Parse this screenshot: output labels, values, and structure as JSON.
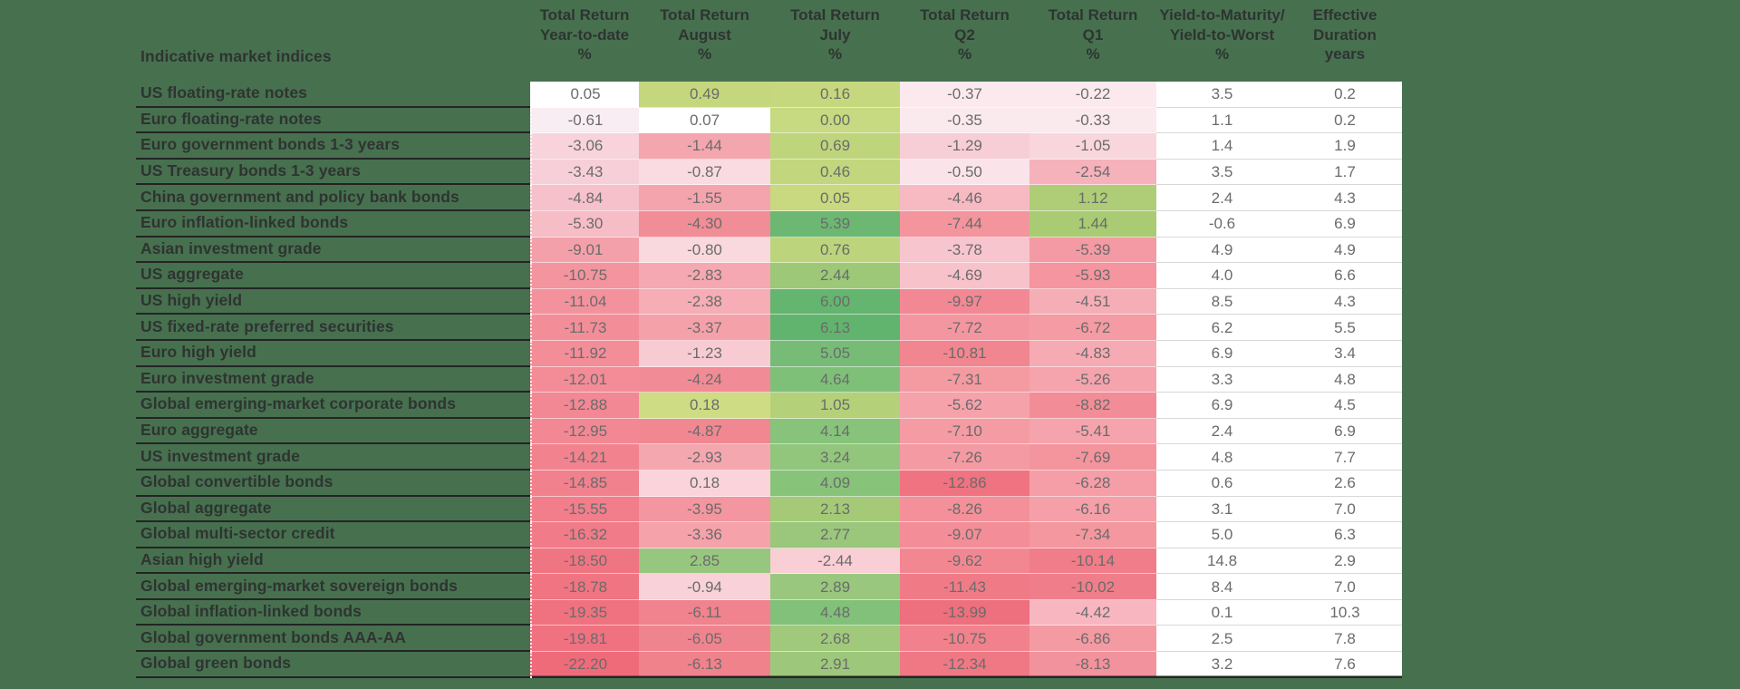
{
  "palette": {
    "background": "#47704f",
    "header_text": "#2e3431",
    "label_text": "#2e3431",
    "value_text": "#6b6b6b",
    "row_underline": "#242424",
    "neutral_cell": "#ffffff"
  },
  "chart_data": {
    "type": "heatmap",
    "row_header": "Indicative market indices",
    "legend_position": "none",
    "columns": [
      {
        "name": "Total Return Year-to-date %",
        "lines": [
          "Total Return",
          "Year-to-date",
          "%"
        ]
      },
      {
        "name": "Total Return August %",
        "lines": [
          "Total Return",
          "August",
          "%"
        ]
      },
      {
        "name": "Total Return July %",
        "lines": [
          "Total Return",
          "July",
          "%"
        ]
      },
      {
        "name": "Total Return Q2 %",
        "lines": [
          "Total Return",
          "Q2",
          "%"
        ]
      },
      {
        "name": "Total Return Q1 %",
        "lines": [
          "Total Return",
          "Q1",
          "%"
        ]
      },
      {
        "name": "Yield-to-Maturity/Yield-to-Worst %",
        "lines": [
          "Yield-to-Maturity/",
          "Yield-to-Worst",
          "%"
        ]
      },
      {
        "name": "Effective Duration years",
        "lines": [
          "Effective",
          "Duration",
          "years"
        ]
      }
    ],
    "rows": [
      {
        "label": "US floating-rate notes",
        "values": [
          "0.05",
          "0.49",
          "0.16",
          "-0.37",
          "-0.22",
          "3.5",
          "0.2"
        ],
        "colors": [
          "#ffffff",
          "#c4d77d",
          "#c6d87e",
          "#fbe9ed",
          "#fbe9ed"
        ]
      },
      {
        "label": "Euro floating-rate notes",
        "values": [
          "-0.61",
          "0.07",
          "0.00",
          "-0.35",
          "-0.33",
          "1.1",
          "0.2"
        ],
        "colors": [
          "#f8edf2",
          "#ffffff",
          "#c7d981",
          "#fae9ed",
          "#fae9ed"
        ]
      },
      {
        "label": "Euro government bonds 1-3 years",
        "values": [
          "-3.06",
          "-1.44",
          "0.69",
          "-1.29",
          "-1.05",
          "1.4",
          "1.9"
        ],
        "colors": [
          "#f8d3db",
          "#f4a6ae",
          "#bed57c",
          "#f8ced6",
          "#f9d6dc"
        ]
      },
      {
        "label": "US Treasury bonds 1-3 years",
        "values": [
          "-3.43",
          "-0.87",
          "0.46",
          "-0.50",
          "-2.54",
          "3.5",
          "1.7"
        ],
        "colors": [
          "#f7cfd8",
          "#f9dbe1",
          "#c2d67e",
          "#fae4e9",
          "#f5b2bb"
        ]
      },
      {
        "label": "China government and policy bank bonds",
        "values": [
          "-4.84",
          "-1.55",
          "0.05",
          "-4.46",
          "1.12",
          "2.4",
          "4.3"
        ],
        "colors": [
          "#f6c1ca",
          "#f4a4ad",
          "#c8d980",
          "#f7bac3",
          "#aecd76"
        ]
      },
      {
        "label": "Euro inflation-linked bonds",
        "values": [
          "-5.30",
          "-4.30",
          "5.39",
          "-7.44",
          "1.44",
          "-0.6",
          "6.9"
        ],
        "colors": [
          "#f6bdc6",
          "#f18d96",
          "#6cb873",
          "#f4959e",
          "#a9cb73"
        ]
      },
      {
        "label": "Asian investment grade",
        "values": [
          "-9.01",
          "-0.80",
          "0.76",
          "-3.78",
          "-5.39",
          "4.9",
          "4.9"
        ],
        "colors": [
          "#f4a0aa",
          "#f9d8de",
          "#bcd47b",
          "#f7c5cd",
          "#f49aa4"
        ]
      },
      {
        "label": "US aggregate",
        "values": [
          "-10.75",
          "-2.83",
          "2.44",
          "-4.69",
          "-5.93",
          "4.0",
          "6.6"
        ],
        "colors": [
          "#f3949e",
          "#f5a8b1",
          "#9cc878",
          "#f8c2ca",
          "#f4959f"
        ]
      },
      {
        "label": "US high yield",
        "values": [
          "-11.04",
          "-2.38",
          "6.00",
          "-9.97",
          "-4.51",
          "8.5",
          "4.3"
        ],
        "colors": [
          "#f3929d",
          "#f6adb5",
          "#64b56f",
          "#f28893",
          "#f6aeb6"
        ]
      },
      {
        "label": "US fixed-rate preferred securities",
        "values": [
          "-11.73",
          "-3.37",
          "6.13",
          "-7.72",
          "-6.72",
          "6.2",
          "5.5"
        ],
        "colors": [
          "#f38e99",
          "#f5a1aa",
          "#61b46d",
          "#f4969f",
          "#f59ba4"
        ]
      },
      {
        "label": "Euro high yield",
        "values": [
          "-11.92",
          "-1.23",
          "5.05",
          "-10.81",
          "-4.83",
          "6.9",
          "3.4"
        ],
        "colors": [
          "#f38d98",
          "#f8cbd2",
          "#76bc77",
          "#f18690",
          "#f6abb4"
        ]
      },
      {
        "label": "Euro investment grade",
        "values": [
          "-12.01",
          "-4.24",
          "4.64",
          "-7.31",
          "-5.26",
          "3.3",
          "4.8"
        ],
        "colors": [
          "#f38c97",
          "#f18b95",
          "#7fc078",
          "#f49aa1",
          "#f5a4ad"
        ]
      },
      {
        "label": "Global emerging-market corporate bonds",
        "values": [
          "-12.88",
          "0.18",
          "1.05",
          "-5.62",
          "-8.82",
          "6.9",
          "4.5"
        ],
        "colors": [
          "#f28893",
          "#cedc84",
          "#b4d17a",
          "#f5a2ab",
          "#f28d97"
        ]
      },
      {
        "label": "Euro aggregate",
        "values": [
          "-12.95",
          "-4.87",
          "4.14",
          "-7.10",
          "-5.41",
          "2.4",
          "6.9"
        ],
        "colors": [
          "#f28893",
          "#f18791",
          "#87c37a",
          "#f49ba3",
          "#f5a3ac"
        ]
      },
      {
        "label": "US investment grade",
        "values": [
          "-14.21",
          "-2.93",
          "3.24",
          "-7.26",
          "-7.69",
          "4.8",
          "7.7"
        ],
        "colors": [
          "#f2838e",
          "#f5a7b0",
          "#91c67c",
          "#f49aa2",
          "#f4949d"
        ]
      },
      {
        "label": "Global convertible bonds",
        "values": [
          "-14.85",
          "0.18",
          "4.09",
          "-12.86",
          "-6.28",
          "0.6",
          "2.6"
        ],
        "colors": [
          "#f1818d",
          "#fbd4db",
          "#88c37a",
          "#ef7380",
          "#f59ea7"
        ]
      },
      {
        "label": "Global aggregate",
        "values": [
          "-15.55",
          "-3.95",
          "2.13",
          "-8.26",
          "-6.16",
          "3.1",
          "7.0"
        ],
        "colors": [
          "#f17e8a",
          "#f3969f",
          "#a5ca77",
          "#f39099",
          "#f59fa8"
        ]
      },
      {
        "label": "Global multi-sector credit",
        "values": [
          "-16.32",
          "-3.36",
          "2.77",
          "-9.07",
          "-7.34",
          "5.0",
          "6.3"
        ],
        "colors": [
          "#f17b88",
          "#f5a2ab",
          "#9ac77b",
          "#f38d97",
          "#f4979f"
        ]
      },
      {
        "label": "Asian high yield",
        "values": [
          "-18.50",
          "2.85",
          "-2.44",
          "-9.62",
          "-10.14",
          "14.8",
          "2.9"
        ],
        "colors": [
          "#f07582",
          "#97c77f",
          "#f9ced5",
          "#f28791",
          "#f07d89"
        ]
      },
      {
        "label": "Global emerging-market sovereign bonds",
        "values": [
          "-18.78",
          "-0.94",
          "2.89",
          "-11.43",
          "-10.02",
          "8.4",
          "7.0"
        ],
        "colors": [
          "#f07481",
          "#f9d1d8",
          "#98c77d",
          "#f07b87",
          "#f07e8a"
        ]
      },
      {
        "label": "Global inflation-linked bonds",
        "values": [
          "-19.35",
          "-6.11",
          "4.48",
          "-13.99",
          "-4.42",
          "0.1",
          "10.3"
        ],
        "colors": [
          "#f07280",
          "#f0838d",
          "#82c17a",
          "#ee6f7d",
          "#f8b7c0"
        ]
      },
      {
        "label": "Global government bonds AAA-AA",
        "values": [
          "-19.81",
          "-6.05",
          "2.68",
          "-10.75",
          "-6.86",
          "2.5",
          "7.8"
        ],
        "colors": [
          "#f07180",
          "#f0848e",
          "#a1c97b",
          "#f1828d",
          "#f49aa3"
        ]
      },
      {
        "label": "Global green bonds",
        "values": [
          "-22.20",
          "-6.13",
          "2.91",
          "-12.34",
          "-8.13",
          "3.2",
          "7.6"
        ],
        "colors": [
          "#ef6b7a",
          "#f0828c",
          "#9dc87c",
          "#f07884",
          "#f2929c"
        ]
      }
    ]
  }
}
